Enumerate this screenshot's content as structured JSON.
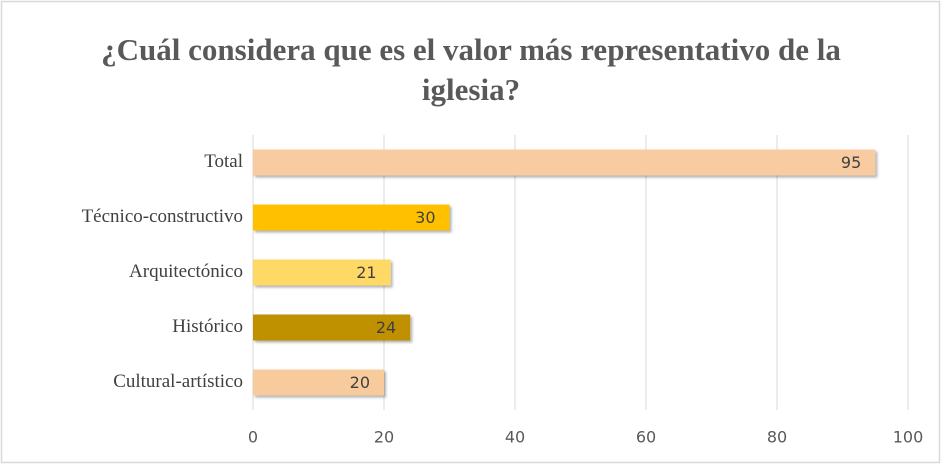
{
  "chart_data": {
    "type": "bar",
    "orientation": "horizontal",
    "title": "¿Cuál considera que es el valor más representativo de la iglesia?",
    "categories": [
      "Total",
      "Técnico-constructivo",
      "Arquitectónico",
      "Histórico",
      "Cultural-artístico"
    ],
    "values": [
      95,
      30,
      21,
      24,
      20
    ],
    "colors": [
      "#f8cba0",
      "#ffc000",
      "#ffd966",
      "#bf9000",
      "#f8cb9c"
    ],
    "xlim": [
      0,
      100
    ],
    "xticks": [
      0,
      20,
      40,
      60,
      80,
      100
    ],
    "grid": true
  }
}
